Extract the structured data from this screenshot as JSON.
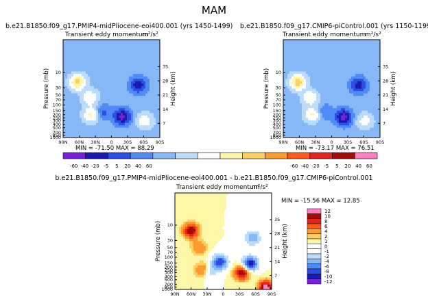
{
  "figure_title": "MAM",
  "panels": [
    {
      "id": "midpliocene",
      "title": "b.e21.B1850.f09_g17.PMIP4-midPliocene-eoi400.001 (yrs 1450-1499)",
      "subtitle": "Transient eddy momentum",
      "units": "m²/s²",
      "stats": "MIN = -71.50   MAX = 88.29"
    },
    {
      "id": "picontrol",
      "title": "b.e21.B1850.f09_g17.CMIP6-piControl.001 (yrs 1150-1199)",
      "subtitle": "Transient eddy momentum",
      "units": "m²/s²",
      "stats": "MIN = -73.17   MAX = 76.51"
    },
    {
      "id": "difference",
      "title": "b.e21.B1850.f09_g17.PMIP4-midPliocene-eoi400.001 - b.e21.B1850.f09_g17.CMIP6-piControl.001",
      "subtitle": "Transient eddy momentum",
      "units": "m²/s²",
      "stats": "MIN = -15.56   MAX = 12.85"
    }
  ],
  "chart_data": [
    {
      "type": "heatmap",
      "panel": "midpliocene",
      "xlabel": "",
      "ylabel": "Pressure (mb)",
      "y2label": "Height (km)",
      "x_ticks": [
        "90N",
        "60N",
        "30N",
        "0",
        "30S",
        "60S",
        "90S"
      ],
      "y_ticks": [
        "10",
        "30",
        "50",
        "70",
        "100",
        "150",
        "200",
        "250",
        "300",
        "400",
        "500",
        "700",
        "850",
        "1000"
      ],
      "y2_ticks": [
        "35",
        "28",
        "21",
        "14",
        "7"
      ],
      "contour_levels": [
        -60,
        -40,
        -20,
        -5,
        5,
        20,
        40,
        60
      ],
      "min": -71.5,
      "max": 88.29,
      "features": [
        {
          "lat": 63,
          "p": 20,
          "v": 70
        },
        {
          "lat": 40,
          "p": 60,
          "v": 40
        },
        {
          "lat": 38,
          "p": 200,
          "v": 45
        },
        {
          "lat": 15,
          "p": 170,
          "v": -25
        },
        {
          "lat": -20,
          "p": 230,
          "v": -70
        },
        {
          "lat": -50,
          "p": 25,
          "v": -55
        },
        {
          "lat": -62,
          "p": 310,
          "v": 35
        }
      ]
    },
    {
      "type": "heatmap",
      "panel": "picontrol",
      "xlabel": "",
      "ylabel": "Pressure (mb)",
      "y2label": "Height (km)",
      "x_ticks": [
        "90N",
        "60N",
        "30N",
        "0",
        "30S",
        "60S",
        "90S"
      ],
      "y_ticks": [
        "10",
        "30",
        "50",
        "70",
        "100",
        "150",
        "200",
        "250",
        "300",
        "400",
        "500",
        "700",
        "850",
        "1000"
      ],
      "y2_ticks": [
        "35",
        "28",
        "21",
        "14",
        "7"
      ],
      "contour_levels": [
        -60,
        -40,
        -20,
        -5,
        5,
        20,
        40,
        60
      ],
      "min": -73.17,
      "max": 76.51,
      "features": [
        {
          "lat": 63,
          "p": 20,
          "v": 72
        },
        {
          "lat": 40,
          "p": 60,
          "v": 38
        },
        {
          "lat": 36,
          "p": 200,
          "v": 42
        },
        {
          "lat": 12,
          "p": 170,
          "v": -20
        },
        {
          "lat": -22,
          "p": 240,
          "v": -72
        },
        {
          "lat": -50,
          "p": 25,
          "v": -50
        },
        {
          "lat": -62,
          "p": 310,
          "v": 30
        }
      ]
    },
    {
      "type": "heatmap",
      "panel": "difference",
      "xlabel": "",
      "ylabel": "Pressure (mb)",
      "y2label": "Height (km)",
      "x_ticks": [
        "90N",
        "60N",
        "30N",
        "0",
        "30S",
        "60S",
        "90S"
      ],
      "y_ticks": [
        "10",
        "30",
        "50",
        "70",
        "100",
        "150",
        "200",
        "250",
        "300",
        "400",
        "500",
        "700",
        "850",
        "1000"
      ],
      "y2_ticks": [
        "35",
        "28",
        "21",
        "14",
        "7"
      ],
      "contour_levels": [
        -12,
        -10,
        -8,
        -6,
        -4,
        -2,
        -1,
        0,
        1,
        2,
        4,
        6,
        8,
        10,
        12
      ],
      "min": -15.56,
      "max": 12.85,
      "features": [
        {
          "lat": 60,
          "p": 15,
          "v": 10
        },
        {
          "lat": 45,
          "p": 50,
          "v": 4
        },
        {
          "lat": 38,
          "p": 250,
          "v": 5
        },
        {
          "lat": 6,
          "p": 140,
          "v": -10
        },
        {
          "lat": 25,
          "p": 280,
          "v": -4
        },
        {
          "lat": -35,
          "p": 300,
          "v": 10
        },
        {
          "lat": -50,
          "p": 160,
          "v": -12
        },
        {
          "lat": -55,
          "p": 25,
          "v": -6
        },
        {
          "lat": -80,
          "p": 900,
          "v": 12
        }
      ]
    }
  ],
  "colorbar_top": {
    "labels": [
      "-60",
      "-40",
      "-20",
      "-5",
      "5",
      "20",
      "40",
      "60"
    ],
    "colors": [
      "#7a1fdc",
      "#1a1ab0",
      "#2a4ee6",
      "#4f8af5",
      "#86b8f8",
      "#bcdcfb",
      "#ffffff",
      "#fff7a8",
      "#ffd060",
      "#ff9a2e",
      "#ff5a1e",
      "#e0251a",
      "#a40c0c",
      "#ff7fc0"
    ]
  },
  "colorbar_diff": {
    "labels": [
      "12",
      "10",
      "8",
      "6",
      "4",
      "2",
      "1",
      "0",
      "-1",
      "-2",
      "-4",
      "-6",
      "-8",
      "-10",
      "-12"
    ],
    "colors": [
      "#ff7fc0",
      "#a40c0c",
      "#e0251a",
      "#ff5a1e",
      "#ff9a2e",
      "#ffd060",
      "#fff7a8",
      "#ffffff",
      "#ffffff",
      "#bcdcfb",
      "#86b8f8",
      "#4f8af5",
      "#2a4ee6",
      "#1a1ab0",
      "#7a1fdc"
    ]
  }
}
